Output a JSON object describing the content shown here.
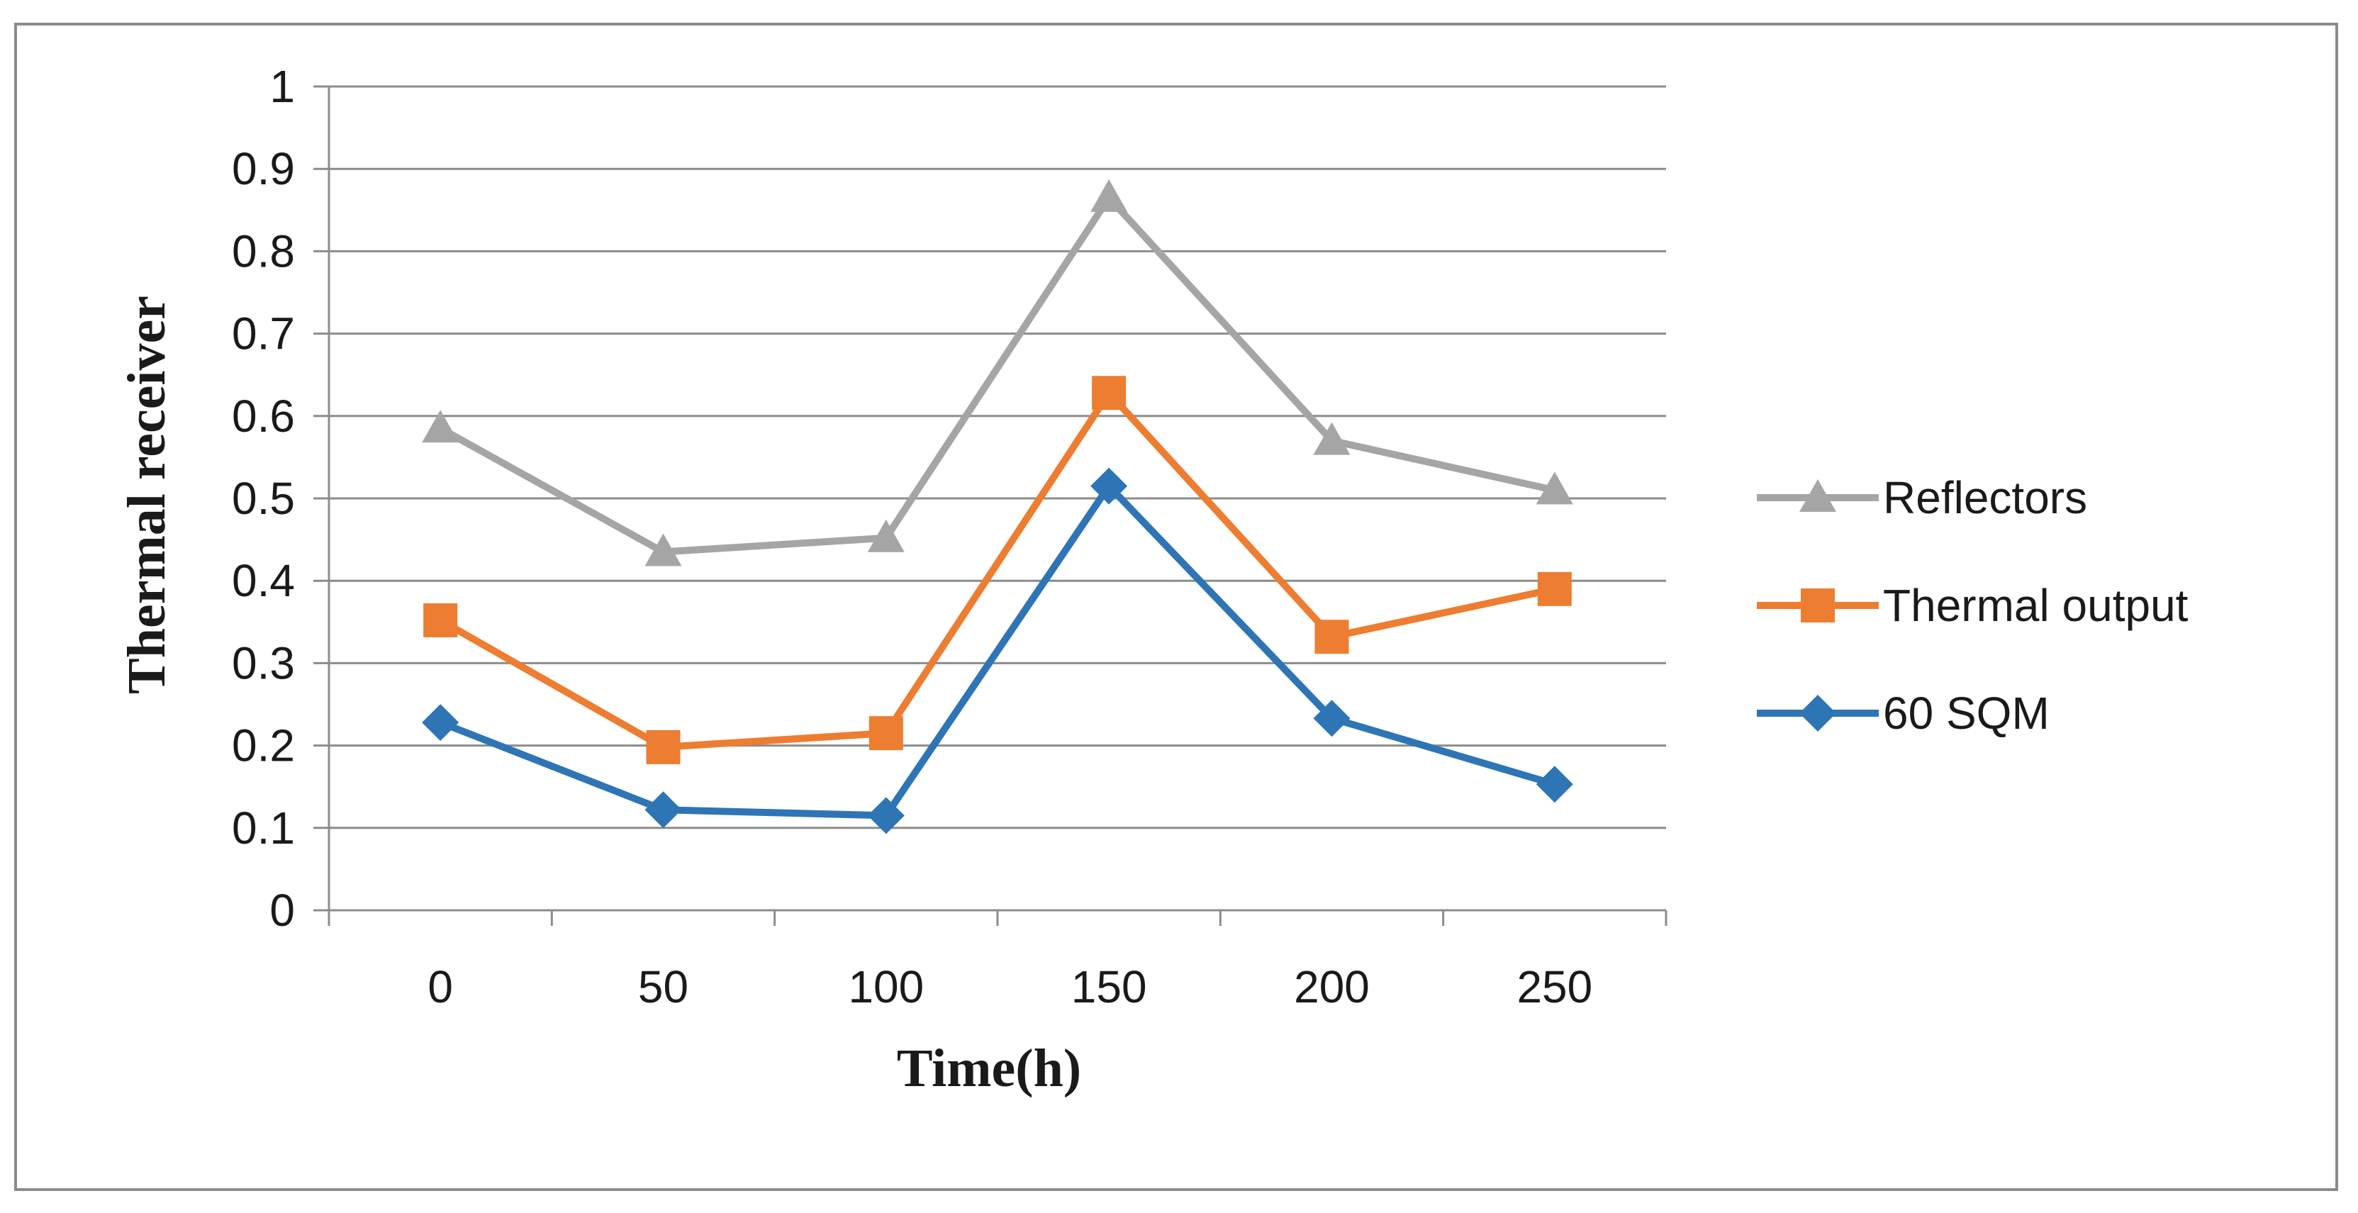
{
  "chart_data": {
    "type": "line",
    "title": "",
    "xlabel": "Time(h)",
    "ylabel": "Thermal receiver",
    "categories": [
      "0",
      "50",
      "100",
      "150",
      "200",
      "250"
    ],
    "ylim": [
      0,
      1
    ],
    "yticks": [
      "0",
      "0.1",
      "0.2",
      "0.3",
      "0.4",
      "0.5",
      "0.6",
      "0.7",
      "0.8",
      "0.9",
      "1"
    ],
    "grid": "horizontal",
    "legend_position": "right",
    "series": [
      {
        "name": "Reflectors",
        "marker": "triangle",
        "color": "#a5a5a5",
        "values": [
          0.585,
          0.435,
          0.452,
          0.865,
          0.57,
          0.51
        ]
      },
      {
        "name": "Thermal output",
        "marker": "square",
        "color": "#ed7d31",
        "values": [
          0.352,
          0.198,
          0.215,
          0.628,
          0.332,
          0.39
        ]
      },
      {
        "name": "60 SQM",
        "marker": "diamond",
        "color": "#2e75b6",
        "values": [
          0.228,
          0.122,
          0.115,
          0.515,
          0.233,
          0.153
        ]
      }
    ]
  }
}
